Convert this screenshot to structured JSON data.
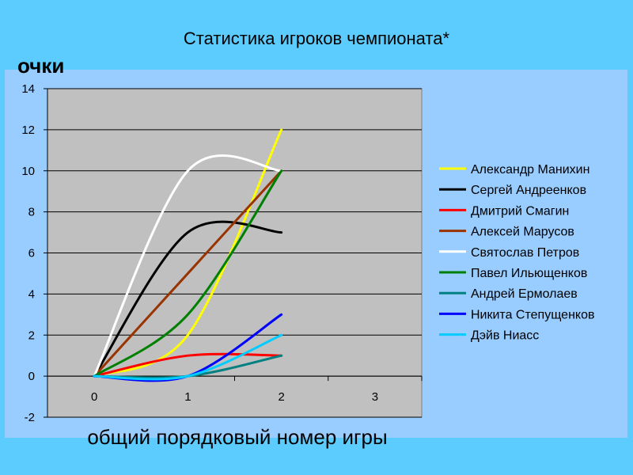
{
  "slide": {
    "title": "Статистика игроков чемпионата*",
    "y_unit": "очки",
    "x_title": "общий порядковый номер игры"
  },
  "chart_data": {
    "type": "line",
    "title": "Статистика игроков чемпионата*",
    "xlabel": "общий порядковый номер игры",
    "ylabel": "очки",
    "xlim": [
      -0.5,
      3.5
    ],
    "ylim": [
      -2,
      14
    ],
    "x_ticks": [
      0,
      1,
      2,
      3
    ],
    "y_ticks": [
      -2,
      0,
      2,
      4,
      6,
      8,
      10,
      12,
      14
    ],
    "grid": "horizontal",
    "legend": "right",
    "smooth": true,
    "x": [
      0,
      1,
      2
    ],
    "series": [
      {
        "name": "Александр Манихин",
        "color": "#ffff00",
        "values": [
          0,
          2,
          12
        ]
      },
      {
        "name": "Сергей Андреенков",
        "color": "#000000",
        "values": [
          0,
          7,
          7
        ]
      },
      {
        "name": "Дмитрий Смагин",
        "color": "#ff0000",
        "values": [
          0,
          1,
          1
        ]
      },
      {
        "name": "Алексей Марусов",
        "color": "#993300",
        "values": [
          0,
          5,
          10
        ]
      },
      {
        "name": "Святослав Петров",
        "color": "#ffffff",
        "values": [
          0,
          10,
          10
        ]
      },
      {
        "name": "Павел Ильющенков",
        "color": "#008000",
        "values": [
          0,
          3,
          10
        ]
      },
      {
        "name": "Андрей Ермолаев",
        "color": "#008080",
        "values": [
          0,
          0,
          1
        ]
      },
      {
        "name": "Никита Степущенков",
        "color": "#0000ff",
        "values": [
          0,
          0,
          3
        ]
      },
      {
        "name": "Дэйв Ниасс",
        "color": "#00ccff",
        "values": [
          0,
          0,
          2
        ]
      }
    ]
  }
}
